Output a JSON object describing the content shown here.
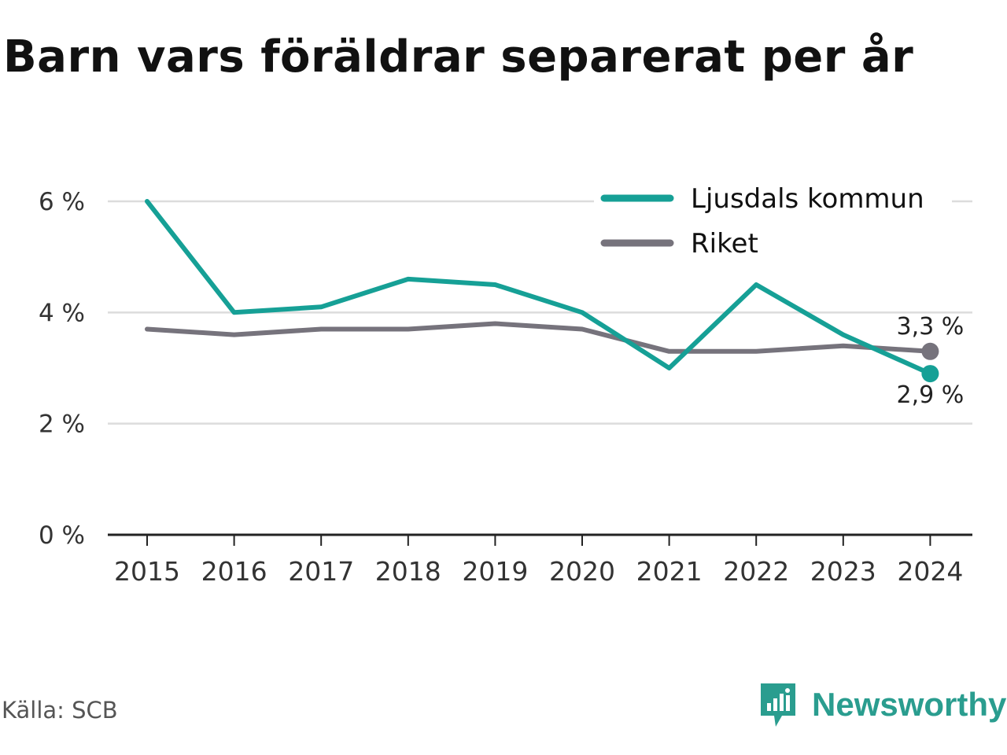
{
  "title": "Barn vars föräldrar separerat per år",
  "source": "Källa: SCB",
  "brand": {
    "name": "Newsworthy"
  },
  "colors": {
    "kommun": "#16a096",
    "riket": "#76737c",
    "grid": "#dcdcdc",
    "axis": "#222222",
    "logo": "#2a9d8f"
  },
  "chart_data": {
    "type": "line",
    "title": "Barn vars föräldrar separerat per år",
    "x": [
      "2015",
      "2016",
      "2017",
      "2018",
      "2019",
      "2020",
      "2021",
      "2022",
      "2023",
      "2024"
    ],
    "ylim": [
      0,
      6
    ],
    "yticks": [
      0,
      2,
      4,
      6
    ],
    "ytick_labels": [
      "0 %",
      "2 %",
      "4 %",
      "6 %"
    ],
    "grid": true,
    "legend": "top-right",
    "series": [
      {
        "name": "Ljusdals kommun",
        "color": "#16a096",
        "values": [
          6.0,
          4.0,
          4.1,
          4.6,
          4.5,
          4.0,
          3.0,
          4.5,
          3.6,
          2.9
        ],
        "end_label": "2,9 %"
      },
      {
        "name": "Riket",
        "color": "#76737c",
        "values": [
          3.7,
          3.6,
          3.7,
          3.7,
          3.8,
          3.7,
          3.3,
          3.3,
          3.4,
          3.3
        ],
        "end_label": "3,3 %"
      }
    ]
  }
}
